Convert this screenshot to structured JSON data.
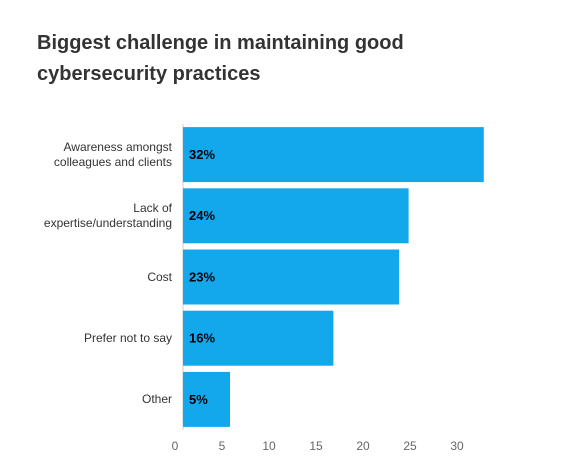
{
  "chart_data": {
    "type": "barh",
    "title": "Biggest challenge in maintaining good cybersecurity practices",
    "categories": [
      "Awareness amongst colleagues and clients",
      "Lack of expertise/understanding",
      "Cost",
      "Prefer not to say",
      "Other"
    ],
    "values": [
      32,
      24,
      23,
      16,
      5
    ],
    "value_labels": [
      "32%",
      "24%",
      "23%",
      "16%",
      "5%"
    ],
    "color": "#13a8ec",
    "xlim": [
      0,
      34
    ],
    "xticks": [
      0,
      5,
      10,
      15,
      20,
      25,
      30
    ],
    "grid": false
  }
}
